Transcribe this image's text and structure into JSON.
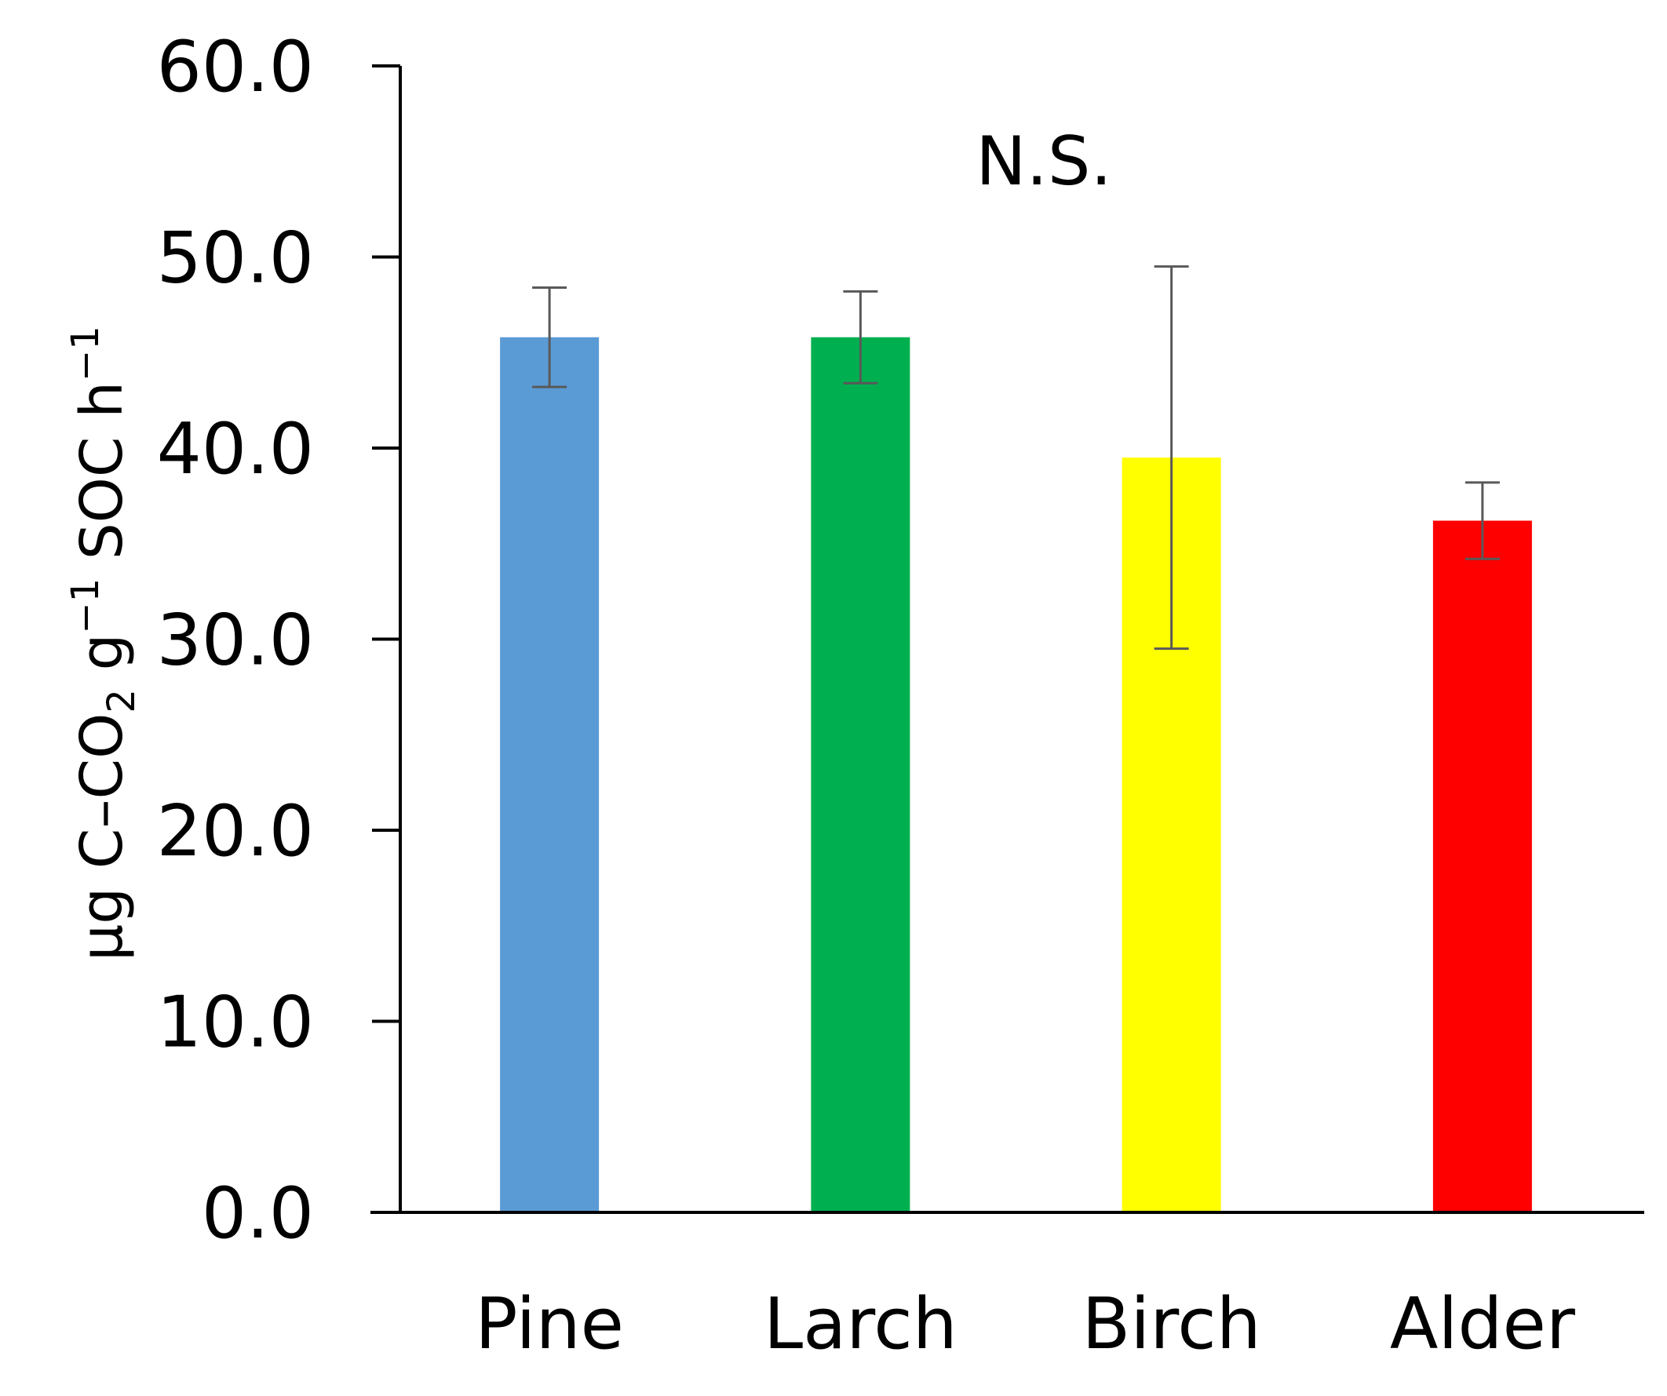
{
  "chart_data": {
    "type": "bar",
    "categories": [
      "Pine",
      "Larch",
      "Birch",
      "Alder"
    ],
    "values": [
      45.8,
      45.8,
      39.5,
      36.2
    ],
    "errors": [
      2.6,
      2.4,
      10.0,
      2.0
    ],
    "colors": [
      "#5b9bd5",
      "#00b050",
      "#ffff00",
      "#ff0000"
    ],
    "error_bar_color": "#595959",
    "ylim": [
      0,
      60
    ],
    "yticks": [
      "0.0",
      "10.0",
      "20.0",
      "30.0",
      "40.0",
      "50.0",
      "60.0"
    ],
    "ylabel": {
      "prefix": "μg C–CO",
      "sub": "2",
      "middle": " g",
      "sup1": "−1",
      "suffix": " SOC h",
      "sup2": "−1"
    },
    "annotation": "N.S.",
    "grid": false
  }
}
